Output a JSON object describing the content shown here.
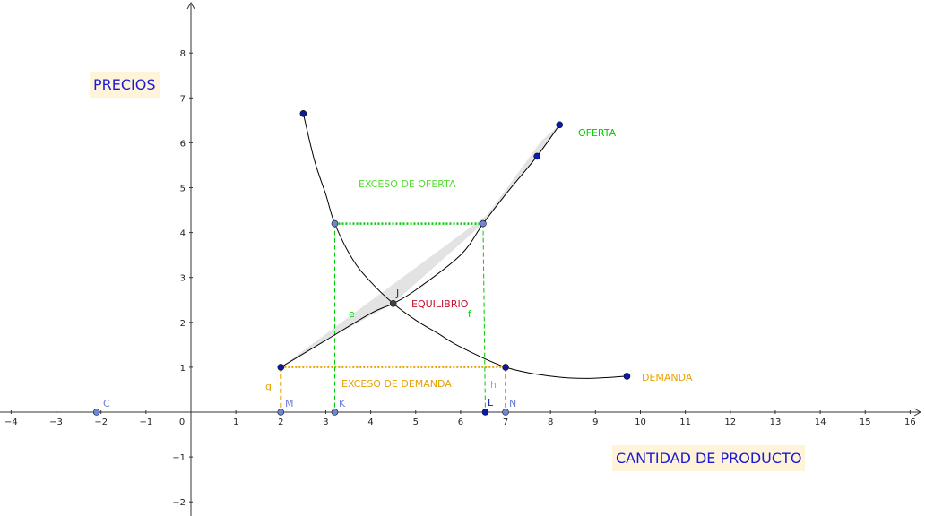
{
  "axes": {
    "x_ticks": [
      "−4",
      "−3",
      "−2",
      "−1",
      "0",
      "1",
      "2",
      "3",
      "4",
      "5",
      "6",
      "7",
      "8",
      "9",
      "10",
      "11",
      "12",
      "13",
      "14",
      "15",
      "16"
    ],
    "y_ticks": [
      "−2",
      "−1",
      "1",
      "2",
      "3",
      "4",
      "5",
      "6",
      "7",
      "8"
    ],
    "x_range": [
      -4.2,
      16.3
    ],
    "y_range": [
      -2.2,
      9.1
    ]
  },
  "labels": {
    "prices": "PRECIOS",
    "quantity": "CANTIDAD DE PRODUCTO",
    "supply": "OFERTA",
    "demand": "DEMANDA",
    "excess_supply": "EXCESO DE OFERTA",
    "excess_demand": "EXCESO DE DEMANDA",
    "equilibrium": "EQUILIBRIO"
  },
  "points": {
    "C": "C",
    "M": "M",
    "K": "K",
    "L": "L",
    "N": "N",
    "J": "J",
    "e": "e",
    "f": "f",
    "g": "g",
    "h": "h"
  },
  "colors": {
    "axis": "#333333",
    "curve": "#000000",
    "point_fill": "#0b1aa8",
    "point_light": "#6f86d6",
    "green": "#00cc00",
    "orange": "#e6a100",
    "crimson": "#c8102e",
    "blue_text": "#1a1ad6",
    "point_label": "#6a7bd8",
    "band": "#e3e3e3"
  },
  "diagram": {
    "supply_curve": [
      [
        2,
        1
      ],
      [
        3,
        1.6
      ],
      [
        4,
        2.2
      ],
      [
        4.5,
        2.42
      ],
      [
        5,
        2.72
      ],
      [
        6,
        3.5
      ],
      [
        6.5,
        4.2
      ],
      [
        7,
        4.85
      ],
      [
        7.7,
        5.7
      ],
      [
        8.2,
        6.4
      ]
    ],
    "demand_curve": [
      [
        2.5,
        6.65
      ],
      [
        2.75,
        5.6
      ],
      [
        3,
        4.85
      ],
      [
        3.2,
        4.2
      ],
      [
        3.6,
        3.4
      ],
      [
        4,
        2.9
      ],
      [
        4.5,
        2.42
      ],
      [
        5,
        2.05
      ],
      [
        5.5,
        1.75
      ],
      [
        6,
        1.45
      ],
      [
        7,
        1.0
      ],
      [
        8,
        0.8
      ],
      [
        8.8,
        0.75
      ],
      [
        9.7,
        0.8
      ]
    ],
    "supply_points": [
      [
        2,
        1
      ],
      [
        6.5,
        4.2
      ],
      [
        7.7,
        5.7
      ],
      [
        8.2,
        6.4
      ]
    ],
    "demand_points": [
      [
        2.5,
        6.65
      ],
      [
        3.2,
        4.2
      ],
      [
        7,
        1.0
      ],
      [
        9.7,
        0.8
      ]
    ],
    "equilibrium": [
      4.5,
      2.42
    ],
    "excess_supply_price": 4.2,
    "excess_demand_price": 1.0,
    "band_polygon": [
      [
        2,
        1
      ],
      [
        6.6,
        4.4
      ],
      [
        7.8,
        6.05
      ],
      [
        8.2,
        6.4
      ],
      [
        7.7,
        5.7
      ],
      [
        6.5,
        4.2
      ],
      [
        4.5,
        2.42
      ],
      [
        3,
        1.6
      ]
    ],
    "axis_points": {
      "C": -2.1,
      "M": 2,
      "K": 3.2,
      "L": 6.55,
      "N": 7
    }
  }
}
